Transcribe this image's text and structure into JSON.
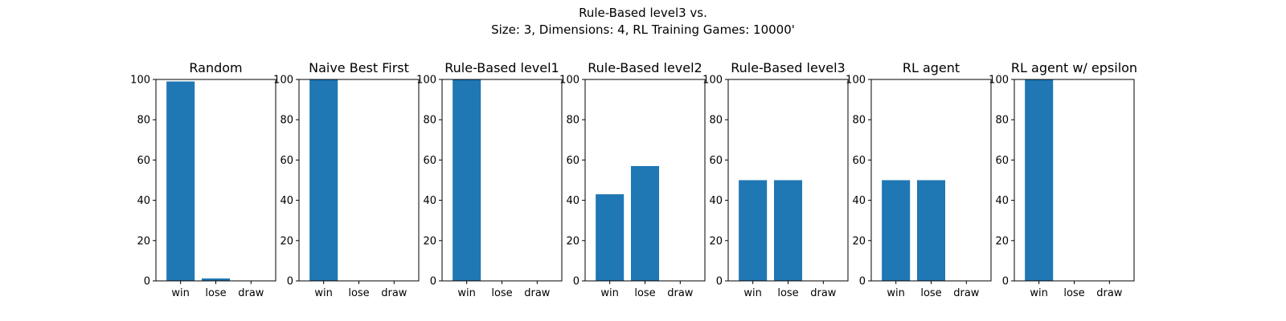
{
  "figure": {
    "title_line1": "Rule-Based level3 vs.",
    "title_line2": "Size: 3, Dimensions: 4, RL Training Games: 10000'"
  },
  "colors": {
    "bar": "#1f77b4",
    "axes": "#000000"
  },
  "chart_data": [
    {
      "type": "bar",
      "title": "Random",
      "categories": [
        "win",
        "lose",
        "draw"
      ],
      "values": [
        99,
        1.2,
        0
      ],
      "ylim": [
        0,
        100
      ],
      "yticks": [
        0,
        20,
        40,
        60,
        80,
        100
      ],
      "grid": false
    },
    {
      "type": "bar",
      "title": "Naive Best First",
      "categories": [
        "win",
        "lose",
        "draw"
      ],
      "values": [
        100,
        0,
        0
      ],
      "ylim": [
        0,
        100
      ],
      "yticks": [
        0,
        20,
        40,
        60,
        80,
        100
      ],
      "grid": false
    },
    {
      "type": "bar",
      "title": "Rule-Based level1",
      "categories": [
        "win",
        "lose",
        "draw"
      ],
      "values": [
        100,
        0,
        0
      ],
      "ylim": [
        0,
        100
      ],
      "yticks": [
        0,
        20,
        40,
        60,
        80,
        100
      ],
      "grid": false
    },
    {
      "type": "bar",
      "title": "Rule-Based level2",
      "categories": [
        "win",
        "lose",
        "draw"
      ],
      "values": [
        43,
        57,
        0
      ],
      "ylim": [
        0,
        100
      ],
      "yticks": [
        0,
        20,
        40,
        60,
        80,
        100
      ],
      "grid": false
    },
    {
      "type": "bar",
      "title": "Rule-Based level3",
      "categories": [
        "win",
        "lose",
        "draw"
      ],
      "values": [
        50,
        50,
        0
      ],
      "ylim": [
        0,
        100
      ],
      "yticks": [
        0,
        20,
        40,
        60,
        80,
        100
      ],
      "grid": false
    },
    {
      "type": "bar",
      "title": "RL agent",
      "categories": [
        "win",
        "lose",
        "draw"
      ],
      "values": [
        50,
        50,
        0
      ],
      "ylim": [
        0,
        100
      ],
      "yticks": [
        0,
        20,
        40,
        60,
        80,
        100
      ],
      "grid": false
    },
    {
      "type": "bar",
      "title": "RL agent w/ epsilon",
      "categories": [
        "win",
        "lose",
        "draw"
      ],
      "values": [
        100,
        0,
        0
      ],
      "ylim": [
        0,
        100
      ],
      "yticks": [
        0,
        20,
        40,
        60,
        80,
        100
      ],
      "grid": false
    }
  ]
}
